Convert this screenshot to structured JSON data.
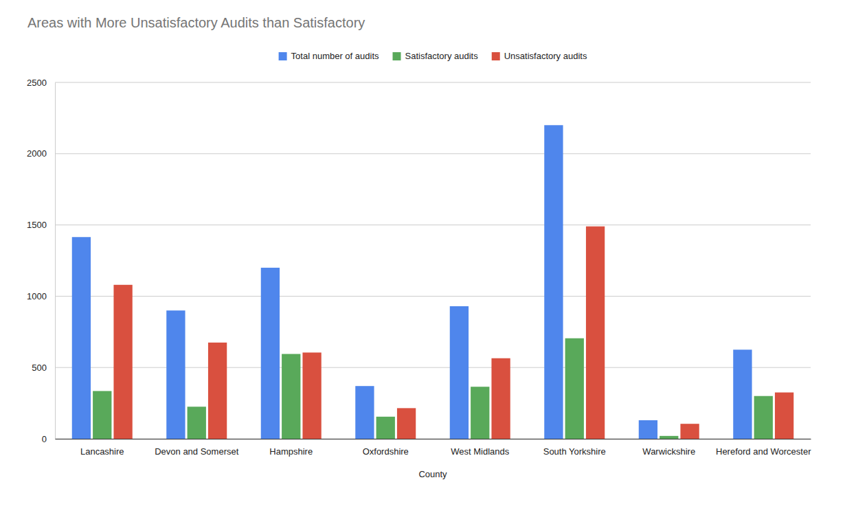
{
  "chart_data": {
    "type": "bar",
    "title": "Areas with More Unsatisfactory Audits than Satisfactory",
    "x_label": "County",
    "categories": [
      "Lancashire",
      "Devon and Somerset",
      "Hampshire",
      "Oxfordshire",
      "West Midlands",
      "South Yorkshire",
      "Warwickshire",
      "Hereford and Worcester"
    ],
    "series": [
      {
        "name": "Total number of audits",
        "color": "#4f86ec",
        "values": [
          1415,
          900,
          1200,
          370,
          930,
          2200,
          130,
          625
        ]
      },
      {
        "name": "Satisfactory audits",
        "color": "#59a95a",
        "values": [
          335,
          225,
          595,
          155,
          365,
          705,
          20,
          300
        ]
      },
      {
        "name": "Unsatisfactory audits",
        "color": "#d9503f",
        "values": [
          1080,
          675,
          605,
          215,
          565,
          1490,
          105,
          325
        ]
      }
    ],
    "ylim": [
      0,
      2500
    ],
    "yticks": [
      0,
      500,
      1000,
      1500,
      2000,
      2500
    ],
    "grid": true,
    "legend": "top"
  }
}
